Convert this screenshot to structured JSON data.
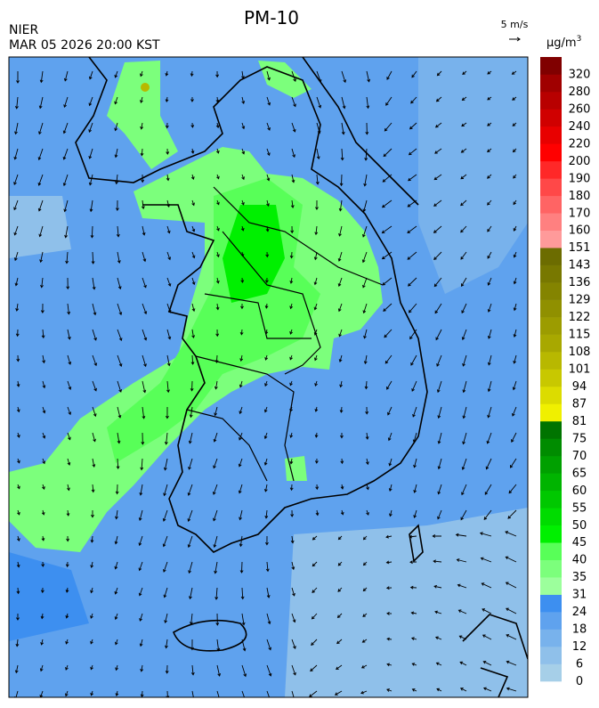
{
  "title": "PM-10",
  "agency": "NIER",
  "timestamp": "MAR 05 2026 20:00 KST",
  "wind_scale": "5 m/s",
  "unit": {
    "base": "μg/m",
    "exponent": "3"
  },
  "colorbar": {
    "labels": [
      0,
      6,
      12,
      18,
      24,
      31,
      35,
      40,
      45,
      50,
      55,
      60,
      65,
      70,
      75,
      81,
      87,
      94,
      101,
      108,
      115,
      122,
      129,
      136,
      143,
      151,
      160,
      170,
      180,
      190,
      200,
      220,
      240,
      260,
      280,
      320
    ],
    "colors": [
      "#a6cfe8",
      "#8fc0ea",
      "#78b2ec",
      "#5fa2ee",
      "#3d8ff0",
      "#9cff9c",
      "#7cff7c",
      "#58ff58",
      "#00f000",
      "#00dc00",
      "#00c800",
      "#00b400",
      "#00a000",
      "#008c00",
      "#007400",
      "#f0f000",
      "#dcdc00",
      "#c8c800",
      "#b8b800",
      "#a8a800",
      "#9c9c00",
      "#909000",
      "#848400",
      "#787800",
      "#6c6c00",
      "#ff9a9a",
      "#ff8080",
      "#ff6464",
      "#ff4848",
      "#ff2828",
      "#ff0000",
      "#e80000",
      "#d00000",
      "#b80000",
      "#a00000",
      "#800000"
    ]
  }
}
